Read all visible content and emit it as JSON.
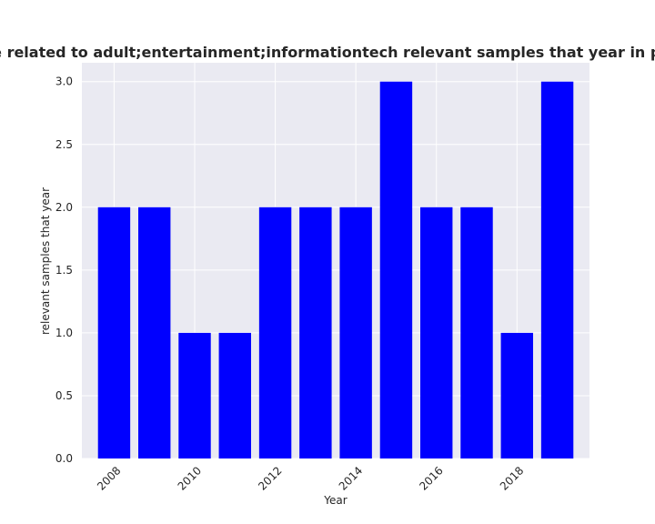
{
  "chart_data": {
    "type": "bar",
    "title": "ories are related to adult;entertainment;informationtech relevant samples that year in privacy p",
    "xlabel": "Year",
    "ylabel": "relevant samples that year",
    "x": [
      2008,
      2009,
      2010,
      2011,
      2012,
      2013,
      2014,
      2015,
      2016,
      2017,
      2018,
      2019
    ],
    "values": [
      2,
      2,
      1,
      1,
      2,
      2,
      2,
      3,
      2,
      2,
      1,
      3
    ],
    "xlim": [
      2007.2,
      2019.8
    ],
    "ylim": [
      0,
      3.15
    ],
    "x_ticks": [
      2008,
      2010,
      2012,
      2014,
      2016,
      2018
    ],
    "x_tick_labels": [
      "2008",
      "2010",
      "2012",
      "2014",
      "2016",
      "2018"
    ],
    "y_ticks": [
      0.0,
      0.5,
      1.0,
      1.5,
      2.0,
      2.5,
      3.0
    ],
    "y_tick_labels": [
      "0.0",
      "0.5",
      "1.0",
      "1.5",
      "2.0",
      "2.5",
      "3.0"
    ],
    "grid": true,
    "colors": {
      "bar": "#0000ff",
      "plot_background": "#eaeaf2",
      "grid": "#ffffff"
    }
  }
}
